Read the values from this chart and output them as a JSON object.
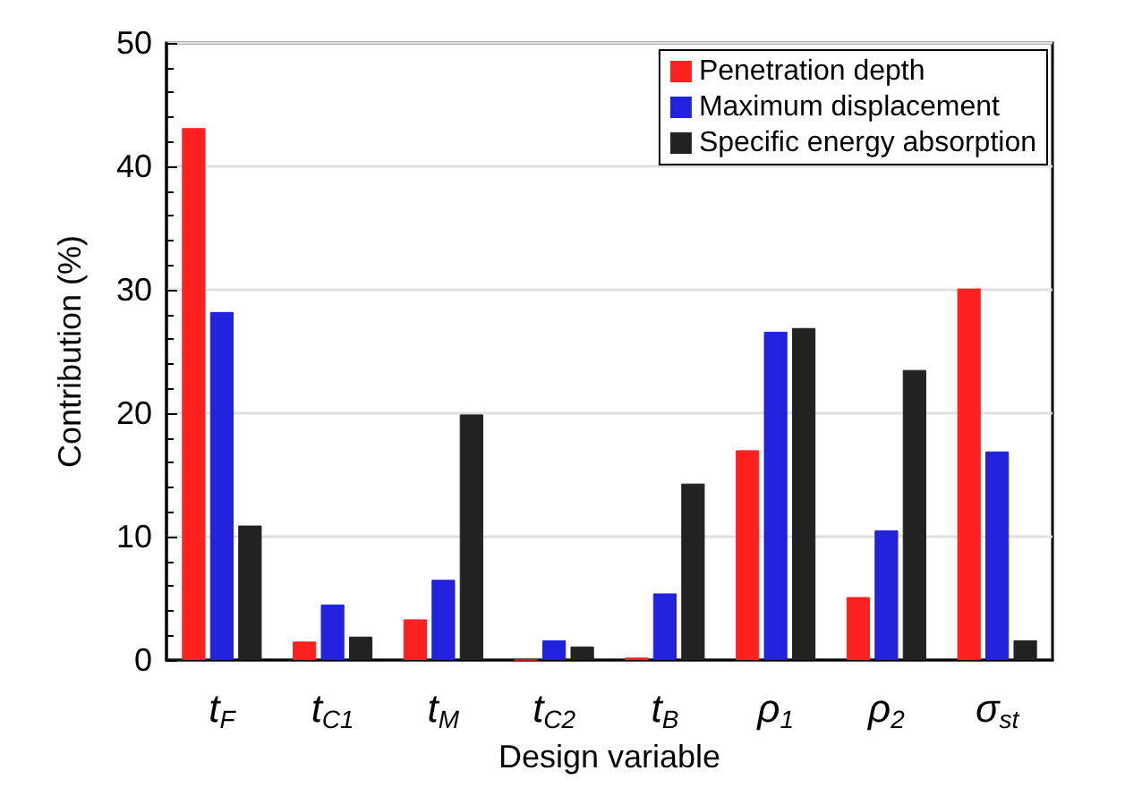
{
  "chart_data": {
    "type": "bar",
    "xlabel": "Design variable",
    "ylabel": "Contribution (%)",
    "categories": [
      "t$_{F}$",
      "t$_{C1}$",
      "t$_{M}$",
      "t$_{C2}$",
      "t$_{B}$",
      "ρ$_{1}$",
      "ρ$_{2}$",
      "σ$_{st}$"
    ],
    "series": [
      {
        "name": "Penetration depth",
        "color": "#ff2020",
        "values": [
          43.1,
          1.5,
          3.3,
          0,
          0.2,
          17.0,
          5.1,
          30.1
        ]
      },
      {
        "name": "Maximum displacement",
        "color": "#2222dd",
        "values": [
          28.2,
          4.5,
          6.5,
          1.6,
          5.4,
          26.6,
          10.5,
          16.9
        ]
      },
      {
        "name": "Specific energy absorption",
        "color": "#222222",
        "values": [
          10.9,
          1.9,
          19.9,
          1.1,
          14.3,
          26.9,
          23.5,
          1.6
        ]
      }
    ],
    "ylim": [
      0,
      50
    ],
    "yticks": [
      0,
      10,
      20,
      30,
      40,
      50
    ],
    "grid": "y",
    "legend": "top right"
  }
}
